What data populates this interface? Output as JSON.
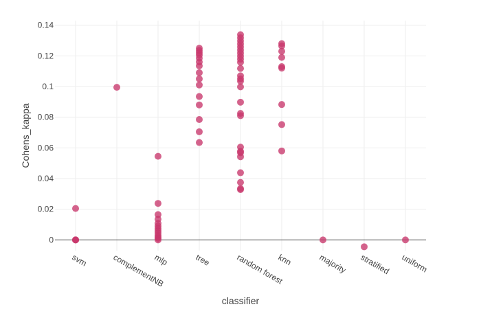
{
  "chart_data": {
    "type": "scatter",
    "xlabel": "classifier",
    "ylabel": "Cohens_kappa",
    "categories": [
      "svm",
      "complementNB",
      "mlp",
      "tree",
      "random forest",
      "knn",
      "majority",
      "stratified",
      "uniform"
    ],
    "ylim": [
      -0.007,
      0.143
    ],
    "yticks": [
      0,
      0.02,
      0.04,
      0.06,
      0.08,
      0.1,
      0.12,
      0.14
    ],
    "ytick_labels": [
      "0",
      "0.02",
      "0.04",
      "0.06",
      "0.08",
      "0.1",
      "0.12",
      "0.14"
    ],
    "grid": true,
    "marker_color": "#c8376b",
    "series": [
      {
        "points": [
          {
            "x": "svm",
            "y": 0.0205
          },
          {
            "x": "svm",
            "y": 0
          },
          {
            "x": "svm",
            "y": 0
          },
          {
            "x": "svm",
            "y": 0
          },
          {
            "x": "complementNB",
            "y": 0.0995
          },
          {
            "x": "mlp",
            "y": 0.0545
          },
          {
            "x": "mlp",
            "y": 0.0238
          },
          {
            "x": "mlp",
            "y": 0.0165
          },
          {
            "x": "mlp",
            "y": 0.0135
          },
          {
            "x": "mlp",
            "y": 0.0108
          },
          {
            "x": "mlp",
            "y": 0.009
          },
          {
            "x": "mlp",
            "y": 0.0075
          },
          {
            "x": "mlp",
            "y": 0.006
          },
          {
            "x": "mlp",
            "y": 0.0045
          },
          {
            "x": "mlp",
            "y": 0.003
          },
          {
            "x": "mlp",
            "y": 0.0018
          },
          {
            "x": "mlp",
            "y": 0.001
          },
          {
            "x": "mlp",
            "y": 0
          },
          {
            "x": "tree",
            "y": 0.125
          },
          {
            "x": "tree",
            "y": 0.1235
          },
          {
            "x": "tree",
            "y": 0.122
          },
          {
            "x": "tree",
            "y": 0.1205
          },
          {
            "x": "tree",
            "y": 0.1185
          },
          {
            "x": "tree",
            "y": 0.116
          },
          {
            "x": "tree",
            "y": 0.1135
          },
          {
            "x": "tree",
            "y": 0.109
          },
          {
            "x": "tree",
            "y": 0.105
          },
          {
            "x": "tree",
            "y": 0.101
          },
          {
            "x": "tree",
            "y": 0.0935
          },
          {
            "x": "tree",
            "y": 0.088
          },
          {
            "x": "tree",
            "y": 0.0785
          },
          {
            "x": "tree",
            "y": 0.0705
          },
          {
            "x": "tree",
            "y": 0.0635
          },
          {
            "x": "random forest",
            "y": 0.1338
          },
          {
            "x": "random forest",
            "y": 0.1318
          },
          {
            "x": "random forest",
            "y": 0.1298
          },
          {
            "x": "random forest",
            "y": 0.1278
          },
          {
            "x": "random forest",
            "y": 0.1258
          },
          {
            "x": "random forest",
            "y": 0.1238
          },
          {
            "x": "random forest",
            "y": 0.1218
          },
          {
            "x": "random forest",
            "y": 0.1198
          },
          {
            "x": "random forest",
            "y": 0.1178
          },
          {
            "x": "random forest",
            "y": 0.1158
          },
          {
            "x": "random forest",
            "y": 0.1118
          },
          {
            "x": "random forest",
            "y": 0.107
          },
          {
            "x": "random forest",
            "y": 0.105
          },
          {
            "x": "random forest",
            "y": 0.1035
          },
          {
            "x": "random forest",
            "y": 0.0998
          },
          {
            "x": "random forest",
            "y": 0.0898
          },
          {
            "x": "random forest",
            "y": 0.0825
          },
          {
            "x": "random forest",
            "y": 0.081
          },
          {
            "x": "random forest",
            "y": 0.0605
          },
          {
            "x": "random forest",
            "y": 0.0578
          },
          {
            "x": "random forest",
            "y": 0.0568
          },
          {
            "x": "random forest",
            "y": 0.0542
          },
          {
            "x": "random forest",
            "y": 0.0438
          },
          {
            "x": "random forest",
            "y": 0.0375
          },
          {
            "x": "random forest",
            "y": 0.0335
          },
          {
            "x": "random forest",
            "y": 0.0328
          },
          {
            "x": "knn",
            "y": 0.128
          },
          {
            "x": "knn",
            "y": 0.1265
          },
          {
            "x": "knn",
            "y": 0.123
          },
          {
            "x": "knn",
            "y": 0.119
          },
          {
            "x": "knn",
            "y": 0.113
          },
          {
            "x": "knn",
            "y": 0.112
          },
          {
            "x": "knn",
            "y": 0.0883
          },
          {
            "x": "knn",
            "y": 0.0752
          },
          {
            "x": "knn",
            "y": 0.058
          },
          {
            "x": "majority",
            "y": 0
          },
          {
            "x": "stratified",
            "y": -0.0045
          },
          {
            "x": "uniform",
            "y": 0
          }
        ]
      }
    ]
  }
}
